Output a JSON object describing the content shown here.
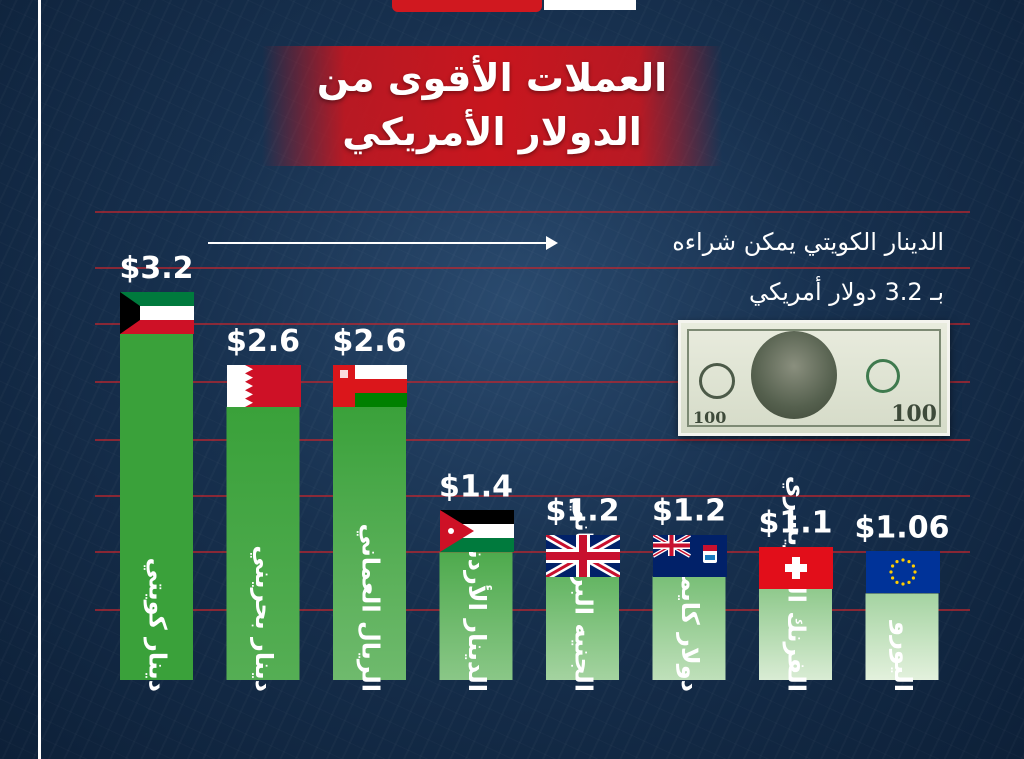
{
  "header": {
    "title_line1": "العملات الأقوى من",
    "title_line2": "الدولار الأمريكي"
  },
  "note": {
    "line1": "الدينار الكويتي يمكن شراءه",
    "line2": "بـ 3.2 دولار أمريكي"
  },
  "banknote": {
    "denomination": "100"
  },
  "colors": {
    "bar_dark": "#3aa13a",
    "bar_light": "#e3f1dd",
    "grid": "#c0262d",
    "title_bg": "#c8161e"
  },
  "chart_data": {
    "type": "bar",
    "title": "العملات الأقوى من الدولار الأمريكي",
    "ylim": [
      0,
      3.2
    ],
    "grid": true,
    "categories": [
      "دينار كويتي",
      "دينار بحريني",
      "الريال العماني",
      "الدينار الأردني",
      "الجنيه البريطاني",
      "دولار كايمان",
      "الفرنك السويسري",
      "اليورو"
    ],
    "values": [
      3.2,
      2.6,
      2.6,
      1.4,
      1.2,
      1.2,
      1.1,
      1.06
    ],
    "value_labels": [
      "$3.2",
      "$2.6",
      "$2.6",
      "$1.4",
      "$1.2",
      "$1.2",
      "$1.1",
      "$1.06"
    ],
    "flags": [
      "kuwait-flag-icon",
      "bahrain-flag-icon",
      "oman-flag-icon",
      "jordan-flag-icon",
      "uk-flag-icon",
      "cayman-flag-icon",
      "swiss-flag-icon",
      "eu-flag-icon"
    ]
  }
}
